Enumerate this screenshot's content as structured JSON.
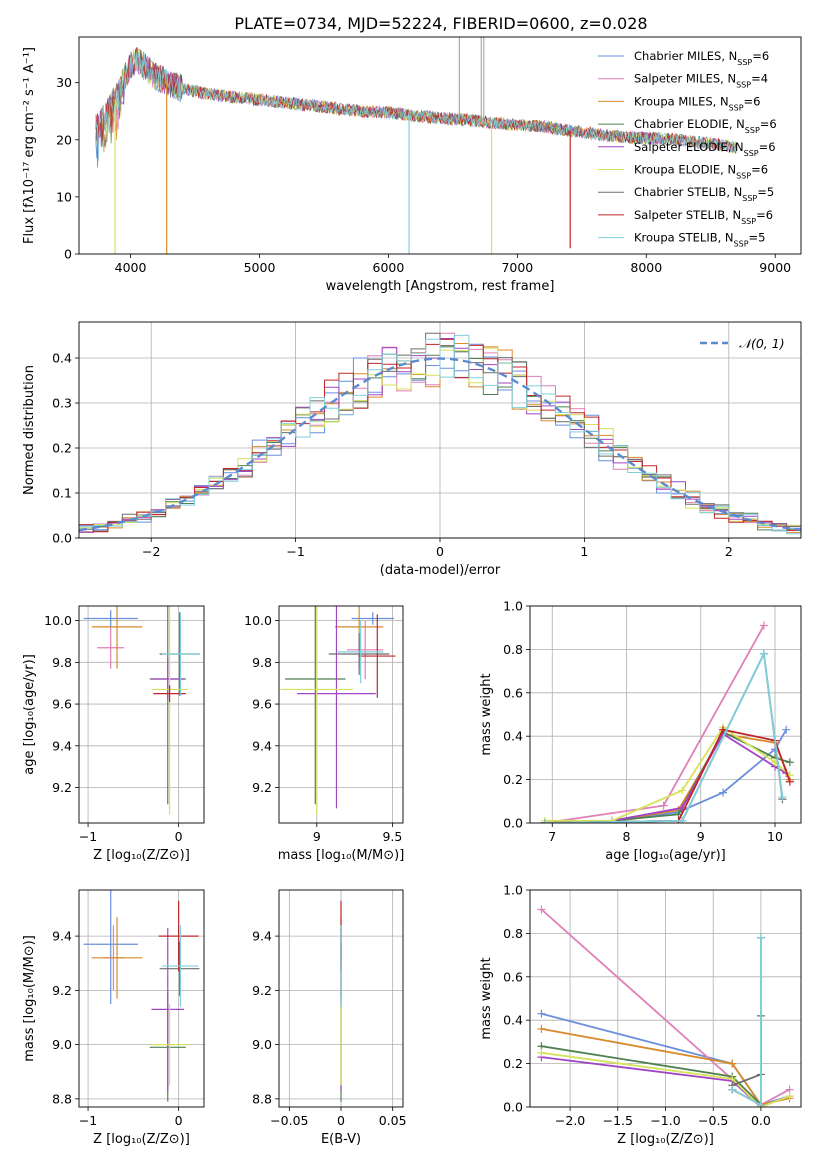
{
  "figure_title": "PLATE=0734, MJD=52224, FIBERID=0600, z=0.028",
  "models": [
    {
      "name": "Chabrier MILES",
      "nssp": "6",
      "color": "#6a8fdc"
    },
    {
      "name": "Salpeter MILES",
      "nssp": "4",
      "color": "#e07fb8"
    },
    {
      "name": "Kroupa MILES",
      "nssp": "6",
      "color": "#d98a2b"
    },
    {
      "name": "Chabrier ELODIE",
      "nssp": "6",
      "color": "#4f8052"
    },
    {
      "name": "Salpeter ELODIE",
      "nssp": "6",
      "color": "#a245c4"
    },
    {
      "name": "Kroupa ELODIE",
      "nssp": "6",
      "color": "#d6e35a"
    },
    {
      "name": "Chabrier STELIB",
      "nssp": "5",
      "color": "#6e6e6e"
    },
    {
      "name": "Salpeter STELIB",
      "nssp": "6",
      "color": "#c0262a"
    },
    {
      "name": "Kroupa STELIB",
      "nssp": "5",
      "color": "#7fd0dc"
    }
  ],
  "chart_data": [
    {
      "id": "spectrum",
      "type": "line",
      "xlabel": "wavelength [Angstrom, rest frame]",
      "ylabel": "Flux [fλ10⁻¹⁷ erg cm⁻² s⁻¹ A⁻¹]",
      "xlim": [
        3600,
        9200
      ],
      "ylim": [
        0,
        38
      ],
      "xticks": [
        4000,
        5000,
        6000,
        7000,
        8000,
        9000
      ],
      "yticks": [
        0,
        10,
        20,
        30
      ],
      "grid": false,
      "legend": "top-right",
      "x": [
        3730,
        3800,
        3900,
        4000,
        4050,
        4200,
        4400,
        4600,
        4800,
        5000,
        5200,
        5400,
        5600,
        5800,
        6000,
        6200,
        6400,
        6600,
        6800,
        7000,
        7200,
        7400,
        7600,
        7800,
        8000,
        8200,
        8400,
        8600,
        8700
      ],
      "y": [
        22,
        24,
        28,
        33,
        34,
        31,
        29,
        28,
        27.5,
        27,
        26.5,
        26,
        25.5,
        25,
        24.8,
        24.2,
        23.8,
        23.5,
        23,
        22.6,
        22.3,
        21.6,
        21,
        20.5,
        20.3,
        20.1,
        19.6,
        19,
        18.6
      ],
      "dips": [
        {
          "x": 3880,
          "y": 0,
          "model": 5
        },
        {
          "x": 4280,
          "y": 0,
          "model": 2
        },
        {
          "x": 6160,
          "y": 0,
          "model": 8
        },
        {
          "x": 6800,
          "y": 0,
          "model": 5
        },
        {
          "x": 7410,
          "y": 1,
          "model": 7
        }
      ],
      "spikes": [
        {
          "x": 6550,
          "y": 38,
          "model": 6
        },
        {
          "x": 6720,
          "y": 38,
          "model": 6
        },
        {
          "x": 6740,
          "y": 38,
          "model": 6
        }
      ]
    },
    {
      "id": "residuals",
      "type": "step-histogram",
      "xlabel": "(data-model)/error",
      "ylabel": "Normed distribution",
      "xlim": [
        -2.5,
        2.5
      ],
      "ylim": [
        0,
        0.48
      ],
      "xticks": [
        -2,
        -1,
        0,
        1,
        2
      ],
      "yticks": [
        0.0,
        0.1,
        0.2,
        0.3,
        0.4
      ],
      "grid": true,
      "legend": "top-right",
      "reference_label": "𝒩(0, 1)",
      "bin_width": 0.1
    },
    {
      "id": "age-vs-Z",
      "type": "errorbar",
      "xlabel": "Z [log₁₀(Z/Z⊙)]",
      "ylabel": "age  [log₁₀(age/yr)]",
      "xlim": [
        -1.1,
        0.28
      ],
      "ylim": [
        9.03,
        10.07
      ],
      "xticks": [
        -1,
        0
      ],
      "yticks": [
        9.2,
        9.4,
        9.6,
        9.8,
        10.0
      ],
      "grid": true,
      "points": [
        {
          "x": -0.75,
          "xerr": 0.3,
          "y": 10.01,
          "yerr": 0.04,
          "model": 0
        },
        {
          "x": -0.75,
          "xerr": 0.15,
          "y": 9.87,
          "yerr": 0.1,
          "model": 1
        },
        {
          "x": -0.68,
          "xerr": 0.28,
          "y": 9.97,
          "yerr": 0.2,
          "model": 2
        },
        {
          "x": -0.12,
          "xerr": 0.2,
          "y": 9.72,
          "yerr": 0.6,
          "model": 3
        },
        {
          "x": -0.12,
          "xerr": 0.18,
          "y": 9.72,
          "yerr": 0.1,
          "model": 4
        },
        {
          "x": 0.01,
          "xerr": 0.22,
          "y": 9.84,
          "yerr": 0.2,
          "model": 6
        },
        {
          "x": -0.1,
          "xerr": 0.2,
          "y": 9.67,
          "yerr": 0.6,
          "model": 5
        },
        {
          "x": -0.1,
          "xerr": 0.18,
          "y": 9.65,
          "yerr": 0.04,
          "model": 7
        },
        {
          "x": 0.02,
          "xerr": 0.2,
          "y": 9.84,
          "yerr": 0.2,
          "model": 8
        }
      ]
    },
    {
      "id": "age-vs-mass",
      "type": "errorbar",
      "xlabel": "mass [log₁₀(M/M⊙)]",
      "ylabel": "",
      "xlim": [
        8.75,
        9.57
      ],
      "ylim": [
        9.03,
        10.07
      ],
      "xticks": [
        9.0,
        9.5
      ],
      "yticks": [
        9.2,
        9.4,
        9.6,
        9.8,
        10.0
      ],
      "grid": true,
      "points": [
        {
          "x": 9.37,
          "xerr": 0.14,
          "y": 10.01,
          "yerr": 0.03,
          "model": 0
        },
        {
          "x": 9.32,
          "xerr": 0.12,
          "y": 9.86,
          "yerr": 0.14,
          "model": 1
        },
        {
          "x": 9.28,
          "xerr": 0.16,
          "y": 9.97,
          "yerr": 0.2,
          "model": 2
        },
        {
          "x": 8.99,
          "xerr": 0.2,
          "y": 9.72,
          "yerr": 0.6,
          "model": 3
        },
        {
          "x": 9.13,
          "xerr": 0.26,
          "y": 9.65,
          "yerr": 0.55,
          "model": 4
        },
        {
          "x": 9.0,
          "xerr": 0.24,
          "y": 9.67,
          "yerr": 0.6,
          "model": 5
        },
        {
          "x": 9.28,
          "xerr": 0.2,
          "y": 9.84,
          "yerr": 0.1,
          "model": 6
        },
        {
          "x": 9.4,
          "xerr": 0.12,
          "y": 9.83,
          "yerr": 0.2,
          "model": 7
        },
        {
          "x": 9.29,
          "xerr": 0.15,
          "y": 9.85,
          "yerr": 0.15,
          "model": 8
        }
      ]
    },
    {
      "id": "weight-vs-age",
      "type": "line",
      "xlabel": "age  [log₁₀(age/yr)]",
      "ylabel": "mass weight",
      "xlim": [
        6.7,
        10.35
      ],
      "ylim": [
        0,
        1
      ],
      "xticks": [
        7,
        8,
        9,
        10
      ],
      "yticks": [
        0.0,
        0.2,
        0.4,
        0.6,
        0.8,
        1.0
      ],
      "grid": true,
      "series": [
        {
          "model": 0,
          "x": [
            6.9,
            7.8,
            8.7,
            9.3,
            10.0,
            10.15
          ],
          "y": [
            0.0,
            0.01,
            0.05,
            0.14,
            0.34,
            0.43
          ]
        },
        {
          "model": 1,
          "x": [
            6.9,
            8.5,
            9.85
          ],
          "y": [
            0.0,
            0.08,
            0.91
          ]
        },
        {
          "model": 2,
          "x": [
            6.9,
            7.8,
            8.7,
            9.3,
            10.0,
            10.2
          ],
          "y": [
            0.0,
            0.01,
            0.06,
            0.41,
            0.37,
            0.2
          ]
        },
        {
          "model": 3,
          "x": [
            6.9,
            7.8,
            8.7,
            9.3,
            10.0,
            10.2
          ],
          "y": [
            0.0,
            0.01,
            0.04,
            0.42,
            0.3,
            0.28
          ]
        },
        {
          "model": 4,
          "x": [
            6.9,
            7.8,
            8.75,
            9.3,
            10.0,
            10.15
          ],
          "y": [
            0.0,
            0.01,
            0.07,
            0.41,
            0.26,
            0.23
          ]
        },
        {
          "model": 5,
          "x": [
            6.9,
            7.8,
            8.75,
            9.3,
            10.0,
            10.2
          ],
          "y": [
            0.01,
            0.01,
            0.15,
            0.44,
            0.28,
            0.22
          ]
        },
        {
          "model": 6,
          "x": [
            6.9,
            8.75,
            9.85,
            10.1
          ],
          "y": [
            0.0,
            0.01,
            0.78,
            0.11
          ]
        },
        {
          "model": 7,
          "x": [
            6.9,
            8.7,
            9.3,
            10.0,
            10.2
          ],
          "y": [
            0.0,
            0.01,
            0.43,
            0.38,
            0.19
          ]
        },
        {
          "model": 8,
          "x": [
            6.9,
            8.75,
            9.85,
            10.1
          ],
          "y": [
            0.0,
            0.01,
            0.78,
            0.12
          ]
        }
      ]
    },
    {
      "id": "mass-vs-Z",
      "type": "errorbar",
      "xlabel": "Z [log₁₀(Z/Z⊙)]",
      "ylabel": "mass [log₁₀(M/M⊙)]",
      "xlim": [
        -1.1,
        0.28
      ],
      "ylim": [
        8.77,
        9.57
      ],
      "xticks": [
        -1,
        0
      ],
      "yticks": [
        8.8,
        9.0,
        9.2,
        9.4
      ],
      "grid": true,
      "points": [
        {
          "x": -0.75,
          "xerr": 0.3,
          "y": 9.37,
          "yerr": 0.22,
          "model": 0
        },
        {
          "x": -0.72,
          "xerr": 0.12,
          "y": 9.32,
          "yerr": 0.12,
          "model": 1
        },
        {
          "x": -0.68,
          "xerr": 0.28,
          "y": 9.32,
          "yerr": 0.15,
          "model": 2
        },
        {
          "x": -0.12,
          "xerr": 0.2,
          "y": 8.99,
          "yerr": 0.2,
          "model": 3
        },
        {
          "x": -0.12,
          "xerr": 0.18,
          "y": 9.13,
          "yerr": 0.3,
          "model": 4
        },
        {
          "x": -0.1,
          "xerr": 0.2,
          "y": 9.0,
          "yerr": 0.15,
          "model": 5
        },
        {
          "x": 0.01,
          "xerr": 0.22,
          "y": 9.28,
          "yerr": 0.1,
          "model": 6
        },
        {
          "x": 0.0,
          "xerr": 0.22,
          "y": 9.4,
          "yerr": 0.13,
          "model": 7
        },
        {
          "x": 0.02,
          "xerr": 0.2,
          "y": 9.29,
          "yerr": 0.15,
          "model": 8
        }
      ]
    },
    {
      "id": "mass-vs-EBV",
      "type": "errorbar",
      "xlabel": "E(B-V)",
      "ylabel": "",
      "xlim": [
        -0.06,
        0.06
      ],
      "ylim": [
        8.77,
        9.57
      ],
      "xticks": [
        -0.05,
        0.0,
        0.05
      ],
      "yticks": [
        8.8,
        9.0,
        9.2,
        9.4
      ],
      "grid": true,
      "points": [
        {
          "x": 0,
          "xerr": 0,
          "y": 9.37,
          "yerr": 0.07,
          "model": 0
        },
        {
          "x": 0,
          "xerr": 0,
          "y": 9.32,
          "yerr": 0.06,
          "model": 1
        },
        {
          "x": 0,
          "xerr": 0,
          "y": 9.32,
          "yerr": 0.15,
          "model": 2
        },
        {
          "x": 0,
          "xerr": 0,
          "y": 8.99,
          "yerr": 0.2,
          "model": 3
        },
        {
          "x": 0,
          "xerr": 0,
          "y": 9.13,
          "yerr": 0.3,
          "model": 4
        },
        {
          "x": 0,
          "xerr": 0,
          "y": 9.0,
          "yerr": 0.15,
          "model": 5
        },
        {
          "x": 0,
          "xerr": 0,
          "y": 9.28,
          "yerr": 0.1,
          "model": 6
        },
        {
          "x": 0,
          "xerr": 0,
          "y": 9.4,
          "yerr": 0.13,
          "model": 7
        },
        {
          "x": 0,
          "xerr": 0,
          "y": 9.29,
          "yerr": 0.15,
          "model": 8
        }
      ]
    },
    {
      "id": "weight-vs-Z",
      "type": "line",
      "xlabel": "Z [log₁₀(Z/Z⊙)]",
      "ylabel": "mass weight",
      "xlim": [
        -2.42,
        0.42
      ],
      "ylim": [
        0,
        1
      ],
      "xticks": [
        -2.0,
        -1.5,
        -1.0,
        -0.5,
        0.0
      ],
      "yticks": [
        0.0,
        0.2,
        0.4,
        0.6,
        0.8,
        1.0
      ],
      "grid": true,
      "series": [
        {
          "model": 0,
          "x": [
            -2.3,
            -0.3,
            0.0,
            0.3
          ],
          "y": [
            0.43,
            0.2,
            0.01,
            0.05
          ]
        },
        {
          "model": 1,
          "x": [
            -2.3,
            0.0,
            0.3
          ],
          "y": [
            0.91,
            0.01,
            0.08
          ]
        },
        {
          "model": 2,
          "x": [
            -2.3,
            -0.3,
            0.0,
            0.3
          ],
          "y": [
            0.36,
            0.2,
            0.01,
            0.04
          ]
        },
        {
          "model": 3,
          "x": [
            -2.3,
            -0.3,
            0.0,
            0.0
          ],
          "y": [
            0.28,
            0.14,
            0.01,
            0.42
          ]
        },
        {
          "model": 4,
          "x": [
            -2.3,
            -0.3,
            0.0
          ],
          "y": [
            0.23,
            0.12,
            0.0
          ]
        },
        {
          "model": 5,
          "x": [
            -2.3,
            -0.3,
            0.0,
            0.3
          ],
          "y": [
            0.25,
            0.13,
            0.0,
            0.05
          ]
        },
        {
          "model": 6,
          "x": [
            -0.3,
            0.0,
            0.0
          ],
          "y": [
            0.1,
            0.15,
            0.78
          ]
        },
        {
          "model": 7,
          "x": [
            -0.3,
            0.0
          ],
          "y": [
            0.08,
            0.01
          ]
        },
        {
          "model": 8,
          "x": [
            -0.3,
            0.0,
            0.0
          ],
          "y": [
            0.08,
            0.01,
            0.78
          ]
        }
      ]
    }
  ]
}
